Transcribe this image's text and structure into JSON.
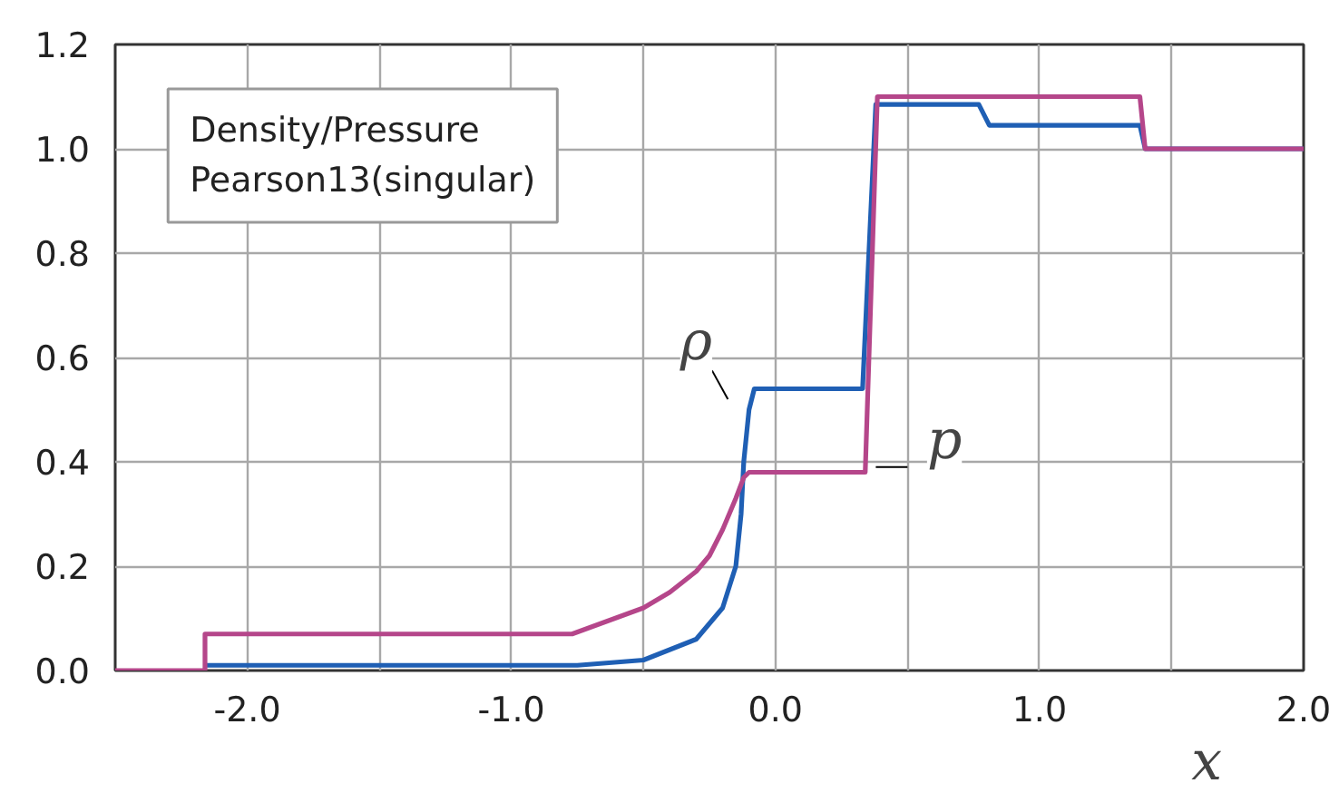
{
  "chart_data": {
    "type": "line",
    "xlabel": "x",
    "annotations": [
      "Density/Pressure",
      "Pearson13(singular)"
    ],
    "xlim": [
      -2.5,
      2.0
    ],
    "xticks": [
      {
        "value": -2.0,
        "label": "-2.0"
      },
      {
        "value": -1.5,
        "label": null
      },
      {
        "value": -1.0,
        "label": "-1.0"
      },
      {
        "value": -0.5,
        "label": null
      },
      {
        "value": 0.0,
        "label": "0.0"
      },
      {
        "value": 0.5,
        "label": null
      },
      {
        "value": 1.0,
        "label": "1.0"
      },
      {
        "value": 1.5,
        "label": null
      },
      {
        "value": 2.0,
        "label": "2.0"
      }
    ],
    "ylim": [
      0.0,
      1.2
    ],
    "yticks": [
      {
        "value": 0.0,
        "label": "0.0"
      },
      0.2,
      0.4,
      0.6,
      0.8,
      {
        "value": 1.0,
        "label": "1.0"
      },
      1.2
    ],
    "grid": true,
    "line_style": "solid",
    "marker": "none",
    "series": [
      {
        "name": "ρ",
        "color": "#1f5fb4",
        "x": [
          -2.16,
          -0.75,
          -0.5,
          -0.3,
          -0.2,
          -0.15,
          -0.13,
          -0.12,
          -0.1,
          -0.08,
          0.33,
          0.38,
          0.77,
          0.81,
          1.38,
          1.4,
          2.0
        ],
        "values": [
          0.01,
          0.01,
          0.02,
          0.06,
          0.12,
          0.2,
          0.3,
          0.4,
          0.5,
          0.54,
          0.54,
          1.085,
          1.085,
          1.045,
          1.045,
          1.0,
          1.0
        ]
      },
      {
        "name": "p",
        "color": "#b5468a",
        "x": [
          -2.5,
          -2.16,
          -2.16,
          -0.77,
          -0.5,
          -0.4,
          -0.3,
          -0.25,
          -0.2,
          -0.15,
          -0.12,
          -0.1,
          0.34,
          0.386,
          1.38,
          1.4,
          2.0
        ],
        "values": [
          0.0,
          0.0,
          0.07,
          0.07,
          0.12,
          0.15,
          0.19,
          0.22,
          0.27,
          0.33,
          0.37,
          0.38,
          0.38,
          1.1,
          1.1,
          1.0,
          1.0
        ]
      }
    ]
  }
}
